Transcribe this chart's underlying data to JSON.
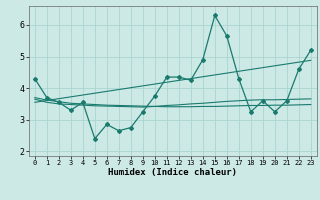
{
  "xlabel": "Humidex (Indice chaleur)",
  "ylabel": "",
  "xlim": [
    -0.5,
    23.5
  ],
  "ylim": [
    1.85,
    6.6
  ],
  "yticks": [
    2,
    3,
    4,
    5,
    6
  ],
  "xticks": [
    0,
    1,
    2,
    3,
    4,
    5,
    6,
    7,
    8,
    9,
    10,
    11,
    12,
    13,
    14,
    15,
    16,
    17,
    18,
    19,
    20,
    21,
    22,
    23
  ],
  "background_color": "#cce9e6",
  "grid_color": "#aad4d0",
  "line_color": "#1a7a6e",
  "series": {
    "line1": {
      "x": [
        0,
        1,
        2,
        3,
        4,
        5,
        6,
        7,
        8,
        9,
        10,
        11,
        12,
        13,
        14,
        15,
        16,
        17,
        18,
        19,
        20,
        21,
        22,
        23
      ],
      "y": [
        4.3,
        3.7,
        3.55,
        3.3,
        3.55,
        2.4,
        2.85,
        2.65,
        2.75,
        3.25,
        3.75,
        4.35,
        4.35,
        4.25,
        4.9,
        6.3,
        5.65,
        4.3,
        3.25,
        3.6,
        3.25,
        3.6,
        4.6,
        5.2
      ]
    },
    "line2": {
      "x": [
        0,
        1,
        2,
        3,
        4,
        5,
        6,
        7,
        8,
        9,
        10,
        11,
        12,
        13,
        14,
        15,
        16,
        17,
        18,
        19,
        20,
        21,
        22,
        23
      ],
      "y": [
        3.7,
        3.62,
        3.57,
        3.52,
        3.5,
        3.48,
        3.46,
        3.45,
        3.44,
        3.43,
        3.42,
        3.41,
        3.41,
        3.41,
        3.42,
        3.42,
        3.43,
        3.44,
        3.45,
        3.45,
        3.46,
        3.46,
        3.47,
        3.48
      ]
    },
    "line3": {
      "x": [
        0,
        1,
        2,
        3,
        4,
        5,
        6,
        7,
        8,
        9,
        10,
        11,
        12,
        13,
        14,
        15,
        16,
        17,
        18,
        19,
        20,
        21,
        22,
        23
      ],
      "y": [
        3.65,
        3.55,
        3.5,
        3.48,
        3.46,
        3.44,
        3.43,
        3.42,
        3.41,
        3.4,
        3.42,
        3.45,
        3.47,
        3.5,
        3.52,
        3.55,
        3.58,
        3.6,
        3.62,
        3.63,
        3.63,
        3.64,
        3.65,
        3.66
      ]
    },
    "line4": {
      "x": [
        0,
        23
      ],
      "y": [
        3.55,
        4.88
      ]
    }
  }
}
